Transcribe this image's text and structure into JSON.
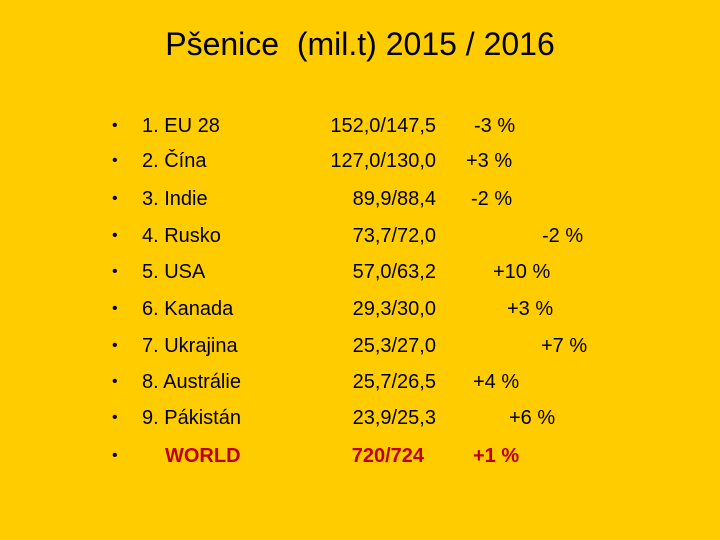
{
  "slide": {
    "title": "Pšenice  (mil.t) 2015 / 2016",
    "bullet": "•",
    "rows": [
      {
        "name": "1. EU 28",
        "values": "152,0/147,5",
        "change": "-3 %"
      },
      {
        "name": "2. Čína",
        "values": "127,0/130,0",
        "change": "+3 %"
      },
      {
        "name": "3. Indie",
        "values": "89,9/88,4",
        "change": "-2 %"
      },
      {
        "name": "4. Rusko",
        "values": "73,7/72,0",
        "change": "-2 %"
      },
      {
        "name": "5. USA",
        "values": "57,0/63,2",
        "change": "+10 %"
      },
      {
        "name": "6. Kanada",
        "values": "29,3/30,0",
        "change": "+3 %"
      },
      {
        "name": "7. Ukrajina",
        "values": "25,3/27,0",
        "change": "+7 %"
      },
      {
        "name": "8. Austrálie",
        "values": "25,7/26,5",
        "change": "+4 %"
      },
      {
        "name": "9. Pákistán",
        "values": "23,9/25,3",
        "change": "+6 %"
      },
      {
        "name": "WORLD",
        "values": "720/724",
        "change": "+1 %"
      }
    ]
  },
  "colors": {
    "background": "#FFCC00",
    "text": "#000000",
    "highlight": "#C00000"
  }
}
